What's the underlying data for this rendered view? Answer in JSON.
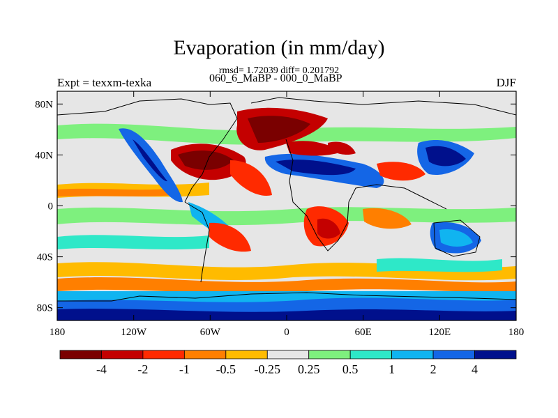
{
  "map": {
    "title": "Evaporation (in mm/day)",
    "stats_line": "rmsd= 1.72039 diff= 0.201792",
    "experiment_label": "Expt = texxm-texka",
    "period_label": "060_6_MaBP - 000_0_MaBP",
    "season": "DJF",
    "lat_ticks": [
      "80N",
      "40N",
      "0",
      "40S",
      "80S"
    ],
    "lon_ticks": [
      "180",
      "120W",
      "60W",
      "0",
      "60E",
      "120E",
      "180"
    ],
    "colorbar": {
      "colors": [
        "#7a0000",
        "#c40000",
        "#ff2a00",
        "#ff7f00",
        "#ffbb00",
        "#e6e6e6",
        "#7ef07e",
        "#2ee8c8",
        "#10b4f0",
        "#1466e6",
        "#00108c"
      ],
      "labels": [
        "-4",
        "-2",
        "-1",
        "-0.5",
        "-0.25",
        "0.25",
        "0.5",
        "1",
        "2",
        "4"
      ]
    }
  }
}
